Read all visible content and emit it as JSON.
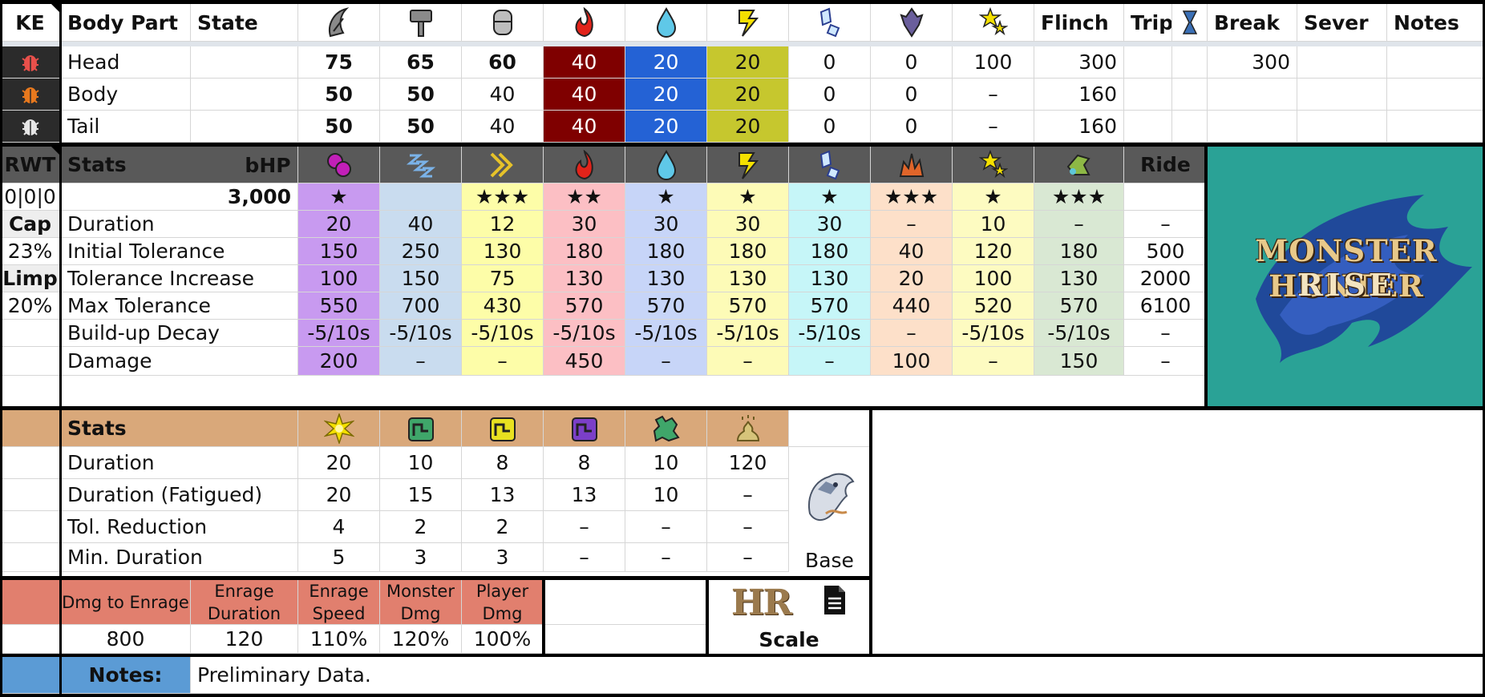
{
  "hitzone": {
    "headers": {
      "ke": "KE",
      "body_part": "Body Part",
      "state": "State",
      "flinch": "Flinch",
      "trip": "Trip",
      "break": "Break",
      "sever": "Sever",
      "notes": "Notes"
    },
    "header_icons": [
      "sever-icon",
      "blunt-icon",
      "shot-icon",
      "fire-icon",
      "water-icon",
      "thunder-icon",
      "ice-icon",
      "dragon-icon",
      "stun-icon"
    ],
    "rows": [
      {
        "part": "Head",
        "sever": "75",
        "blunt": "65",
        "shot": "60",
        "fire": "40",
        "water": "20",
        "thunder": "20",
        "ice": "0",
        "dragon": "0",
        "stun": "100",
        "flinch": "300",
        "break": "300"
      },
      {
        "part": "Body",
        "sever": "50",
        "blunt": "50",
        "shot": "40",
        "fire": "40",
        "water": "20",
        "thunder": "20",
        "ice": "0",
        "dragon": "0",
        "stun": "–",
        "flinch": "160",
        "break": ""
      },
      {
        "part": "Tail",
        "sever": "50",
        "blunt": "50",
        "shot": "40",
        "fire": "40",
        "water": "20",
        "thunder": "20",
        "ice": "0",
        "dragon": "0",
        "stun": "–",
        "flinch": "160",
        "break": ""
      }
    ],
    "colors": {
      "fire": "#7f0000",
      "water": "#2462d5",
      "thunder": "#c6c72e",
      "weak": "#e02e4b",
      "mid": "#e86f1e",
      "none": "#e0e0e0"
    }
  },
  "status": {
    "rwt_label": "RWT",
    "stats_label": "Stats",
    "bhp_label": "bHP",
    "ride_label": "Ride",
    "rwt_value": "0|0|0",
    "bhp_value": "3,000",
    "cap_label": "Cap",
    "cap_value": "23%",
    "limp_label": "Limp",
    "limp_value": "20%",
    "icons": [
      "poison-icon",
      "sleep-icon",
      "paralysis-icon",
      "fire-blight-icon",
      "water-blight-icon",
      "thunder-blight-icon",
      "ice-blight-icon",
      "blast-icon",
      "stun-icon",
      "exhaust-icon"
    ],
    "stars": [
      "★",
      "",
      "★★★",
      "★★",
      "★",
      "★",
      "★",
      "★★★",
      "★",
      "★★★",
      ""
    ],
    "rows": [
      {
        "label": "Duration",
        "values": [
          "20",
          "40",
          "12",
          "30",
          "30",
          "30",
          "30",
          "–",
          "10",
          "–",
          "–"
        ]
      },
      {
        "label": "Initial Tolerance",
        "values": [
          "150",
          "250",
          "130",
          "180",
          "180",
          "180",
          "180",
          "40",
          "120",
          "180",
          "500"
        ]
      },
      {
        "label": "Tolerance Increase",
        "values": [
          "100",
          "150",
          "75",
          "130",
          "130",
          "130",
          "130",
          "20",
          "100",
          "130",
          "2000"
        ]
      },
      {
        "label": "Max Tolerance",
        "values": [
          "550",
          "700",
          "430",
          "570",
          "570",
          "570",
          "570",
          "440",
          "520",
          "570",
          "6100"
        ]
      },
      {
        "label": "Build-up Decay",
        "values": [
          "-5/10s",
          "-5/10s",
          "-5/10s",
          "-5/10s",
          "-5/10s",
          "-5/10s",
          "-5/10s",
          "–",
          "-5/10s",
          "-5/10s",
          "–"
        ]
      },
      {
        "label": "Damage",
        "values": [
          "200",
          "–",
          "–",
          "450",
          "–",
          "–",
          "–",
          "100",
          "–",
          "150",
          "–"
        ]
      }
    ],
    "col_colors": [
      "#c89af0",
      "#c9dcef",
      "#fdfda8",
      "#fcbfc4",
      "#c7d5f8",
      "#fdfbb7",
      "#c6f6f8",
      "#fde0c9",
      "#fdfbc1",
      "#d9e8d3",
      "#ffffff"
    ],
    "logo_line1": "MONSTER HUNTER",
    "logo_line2": "RISE",
    "logo_bg": "#2aa296"
  },
  "traps": {
    "stats_label": "Stats",
    "icons": [
      "flash-bomb-icon",
      "shock-trap-icon",
      "pitfall-trap-icon",
      "sonic-bomb-icon",
      "tranq-icon",
      "dung-icon"
    ],
    "rows": [
      {
        "label": "Duration",
        "values": [
          "20",
          "10",
          "8",
          "8",
          "10",
          "120"
        ]
      },
      {
        "label": "Duration (Fatigued)",
        "values": [
          "20",
          "15",
          "13",
          "13",
          "10",
          "–"
        ]
      },
      {
        "label": "Tol. Reduction",
        "values": [
          "4",
          "2",
          "2",
          "–",
          "–",
          "–"
        ]
      },
      {
        "label": "Min. Duration",
        "values": [
          "5",
          "3",
          "3",
          "–",
          "–",
          "–"
        ]
      }
    ],
    "base_label": "Base",
    "header_color": "#d9a87a"
  },
  "enrage": {
    "headers": [
      "Dmg to Enrage",
      "Enrage Duration",
      "Enrage Speed",
      "Monster Dmg",
      "Player Dmg"
    ],
    "values": [
      "800",
      "120",
      "110%",
      "120%",
      "100%"
    ],
    "color": "#e17f6e"
  },
  "scale": {
    "hr_label": "HR",
    "scale_label": "Scale"
  },
  "notes": {
    "label": "Notes:",
    "text": "Preliminary Data.",
    "label_color": "#5b9bd5"
  }
}
